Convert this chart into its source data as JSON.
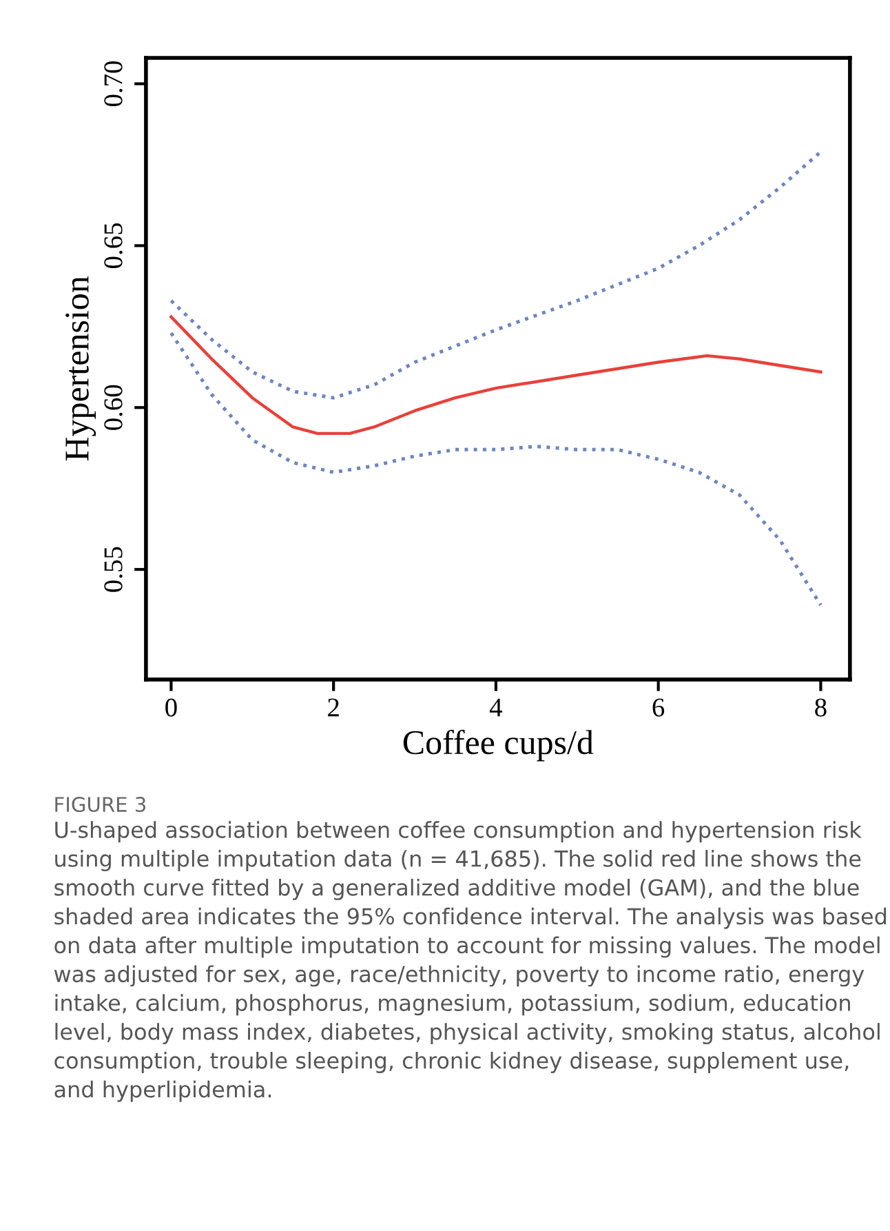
{
  "chart_data": {
    "type": "line",
    "xlabel": "Coffee cups/d",
    "ylabel": "Hypertension",
    "series": [
      {
        "color": "#e8413a",
        "line_style": "solid",
        "x": [
          0,
          0.5,
          1,
          1.5,
          1.8,
          2.2,
          2.5,
          3,
          3.5,
          4,
          5,
          6,
          6.6,
          7,
          7.5,
          8
        ],
        "values": [
          0.628,
          0.615,
          0.603,
          0.594,
          0.592,
          0.592,
          0.594,
          0.599,
          0.603,
          0.606,
          0.61,
          0.614,
          0.616,
          0.615,
          0.613,
          0.611
        ]
      },
      {
        "color": "#6f85c0",
        "line_style": "dotted",
        "x": [
          0,
          0.5,
          1,
          1.5,
          2,
          2.5,
          3,
          3.5,
          4,
          5,
          6,
          6.5,
          7,
          7.5,
          8
        ],
        "values": [
          0.633,
          0.621,
          0.611,
          0.605,
          0.603,
          0.607,
          0.614,
          0.619,
          0.624,
          0.633,
          0.643,
          0.65,
          0.658,
          0.668,
          0.679
        ]
      },
      {
        "color": "#6f85c0",
        "line_style": "dotted",
        "x": [
          0,
          0.5,
          1,
          1.5,
          2,
          2.5,
          3,
          3.5,
          4,
          4.5,
          5,
          5.5,
          6,
          6.5,
          7,
          7.5,
          8
        ],
        "values": [
          0.623,
          0.604,
          0.59,
          0.583,
          0.58,
          0.582,
          0.585,
          0.587,
          0.587,
          0.588,
          0.587,
          0.587,
          0.584,
          0.58,
          0.573,
          0.559,
          0.539
        ]
      }
    ],
    "xlim": [
      -0.31,
      8.36
    ],
    "xticks": [
      0,
      2,
      4,
      6,
      8
    ],
    "ylim": [
      0.516,
      0.708
    ],
    "yticks": [
      {
        "value": 0.55,
        "label": "0.55"
      },
      {
        "value": 0.6,
        "label": "0.60"
      },
      {
        "value": 0.65,
        "label": "0.65"
      },
      {
        "value": 0.7,
        "label": "0.70"
      }
    ],
    "grid": false,
    "legend": false,
    "marker": "none",
    "annotations": [
      "FIGURE 3",
      "U-shaped association between coffee consumption and hypertension risk using multiple imputation data (n = 41,685). The solid red line shows the smooth curve fitted by a generalized additive model (GAM), and the blue shaded area indicates the 95% confidence interval. The analysis was based on data after multiple imputation to account for missing values. The model was adjusted for sex, age, race/ethnicity, poverty to income ratio, energy intake, calcium, phosphorus, magnesium, potassium, sodium, education level, body mass index, diabetes, physical activity, smoking status, alcohol consumption, trouble sleeping, chronic kidney disease, supplement use, and hyperlipidemia."
    ]
  }
}
